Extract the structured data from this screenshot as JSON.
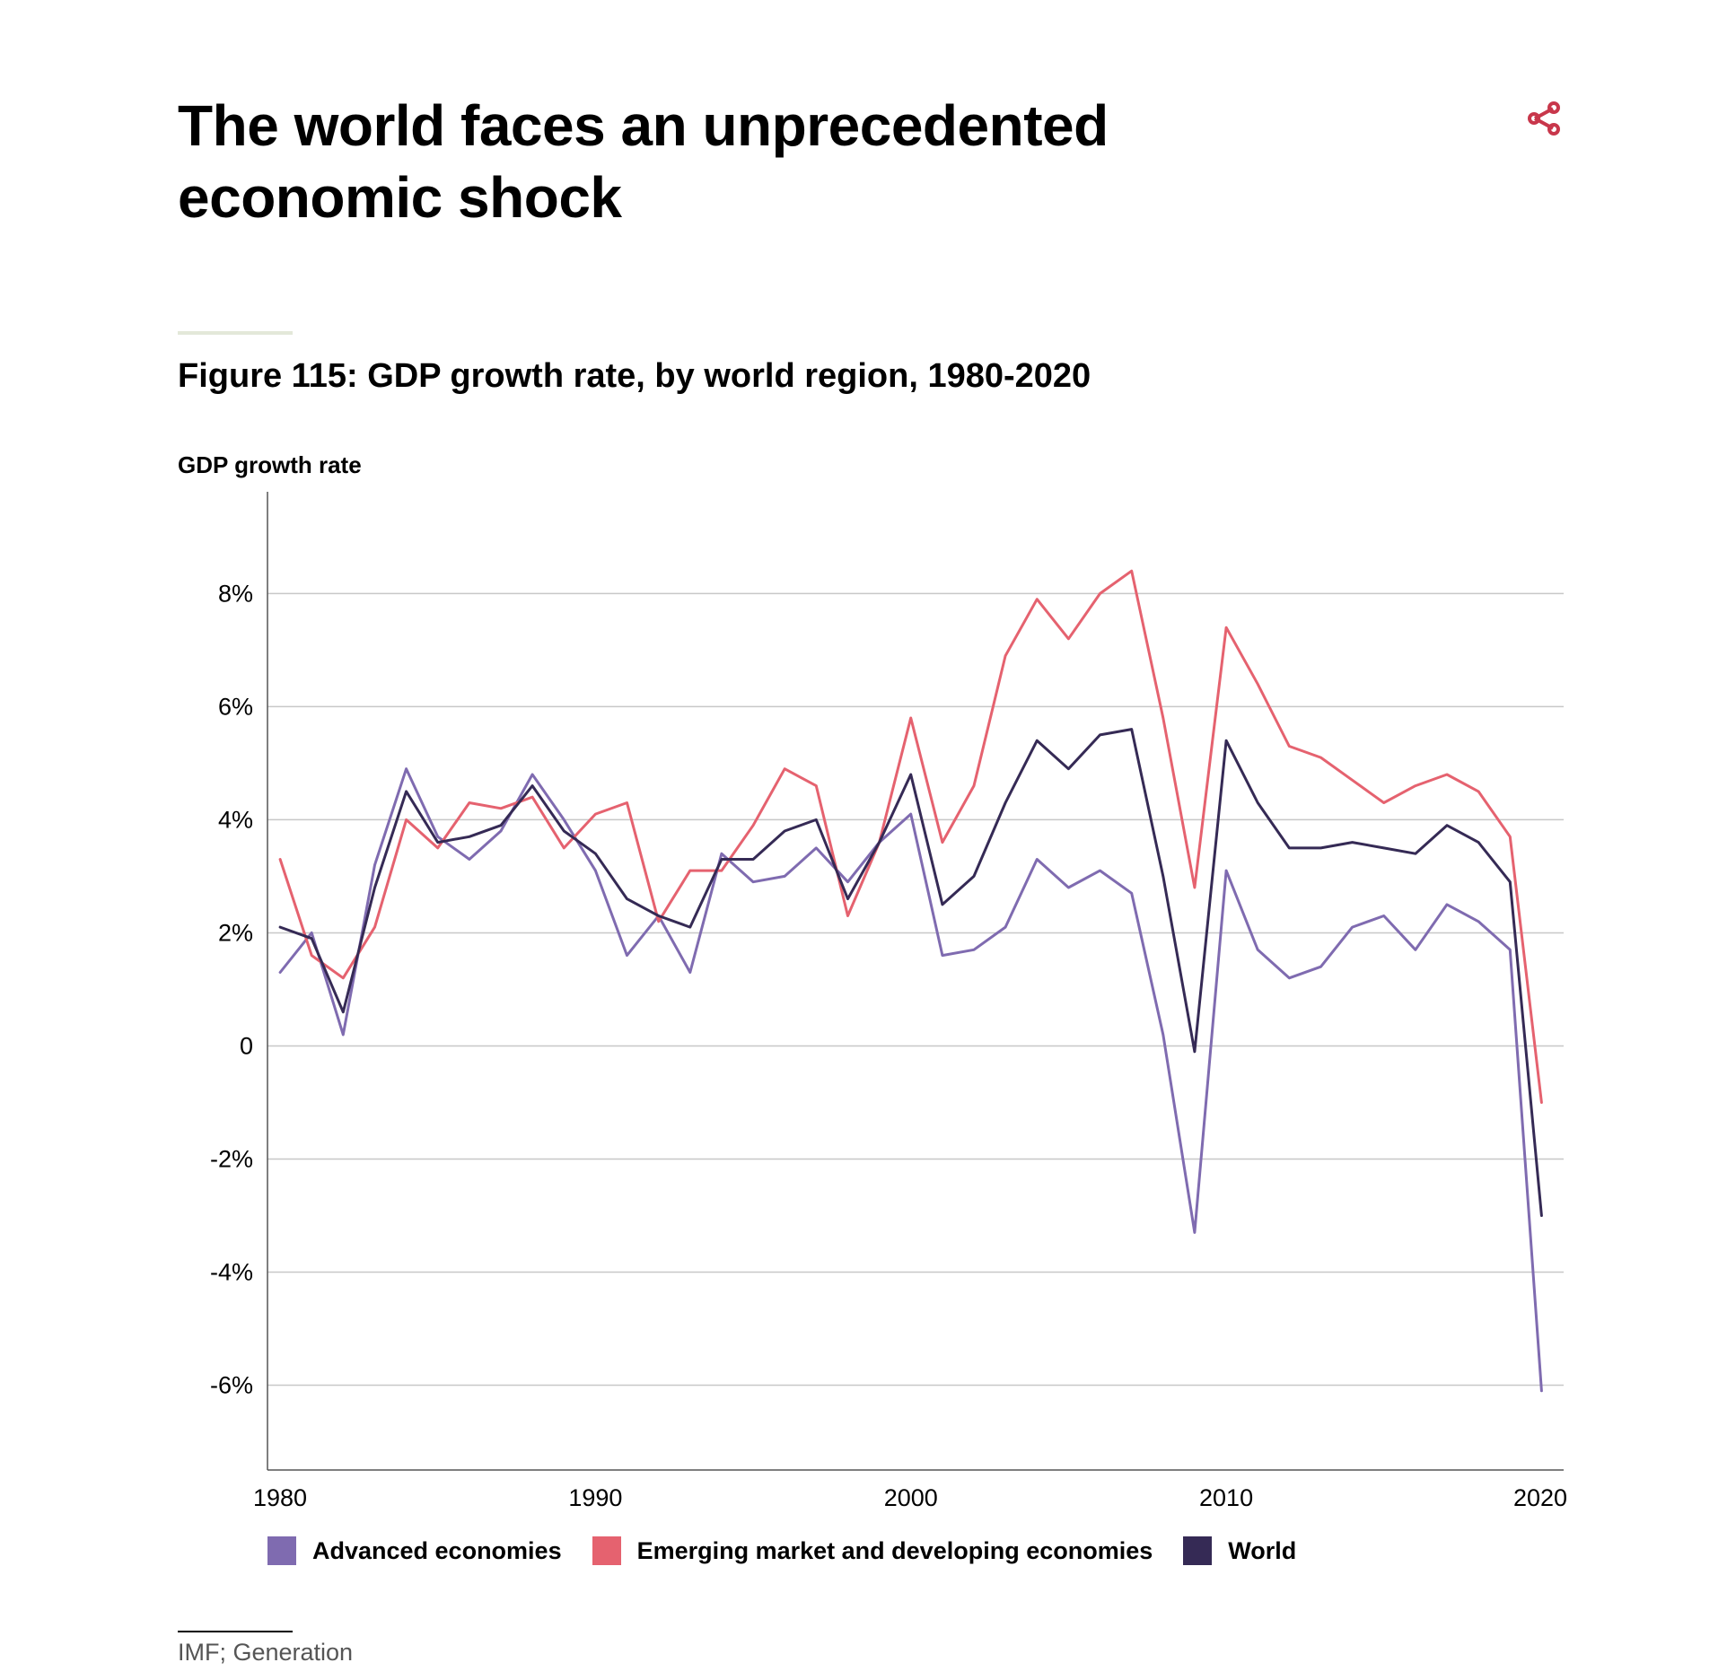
{
  "header": {
    "title": "The world faces an unprecedented economic shock",
    "share_icon": "share-icon",
    "share_color": "#c8374b"
  },
  "figure": {
    "title": "Figure 115: GDP growth rate, by world region, 1980-2020",
    "source": "IMF; Generation"
  },
  "chart_data": {
    "type": "line",
    "title": "Figure 115: GDP growth rate, by world region, 1980-2020",
    "xlabel": "",
    "ylabel": "GDP growth rate",
    "xlim": [
      1980,
      2020
    ],
    "ylim": [
      -7.5,
      9.8
    ],
    "x_ticks": [
      1980,
      1990,
      2000,
      2010,
      2020
    ],
    "y_ticks": [
      -6,
      -4,
      -2,
      0,
      2,
      4,
      6,
      8
    ],
    "y_tick_labels": [
      "-6%",
      "-4%",
      "-2%",
      "0",
      "2%",
      "4%",
      "6%",
      "8%"
    ],
    "grid": "horizontal",
    "legend_position": "bottom",
    "x": [
      1980,
      1981,
      1982,
      1983,
      1984,
      1985,
      1986,
      1987,
      1988,
      1989,
      1990,
      1991,
      1992,
      1993,
      1994,
      1995,
      1996,
      1997,
      1998,
      1999,
      2000,
      2001,
      2002,
      2003,
      2004,
      2005,
      2006,
      2007,
      2008,
      2009,
      2010,
      2011,
      2012,
      2013,
      2014,
      2015,
      2016,
      2017,
      2018,
      2019,
      2020
    ],
    "series": [
      {
        "name": "Advanced economies",
        "color": "#7f6bb0",
        "values": [
          1.3,
          2.0,
          0.2,
          3.2,
          4.9,
          3.7,
          3.3,
          3.8,
          4.8,
          4.0,
          3.1,
          1.6,
          2.3,
          1.3,
          3.4,
          2.9,
          3.0,
          3.5,
          2.9,
          3.6,
          4.1,
          1.6,
          1.7,
          2.1,
          3.3,
          2.8,
          3.1,
          2.7,
          0.2,
          -3.3,
          3.1,
          1.7,
          1.2,
          1.4,
          2.1,
          2.3,
          1.7,
          2.5,
          2.2,
          1.7,
          -6.1
        ]
      },
      {
        "name": "Emerging market and developing economies",
        "color": "#e5626f",
        "values": [
          3.3,
          1.6,
          1.2,
          2.1,
          4.0,
          3.5,
          4.3,
          4.2,
          4.4,
          3.5,
          4.1,
          4.3,
          2.2,
          3.1,
          3.1,
          3.9,
          4.9,
          4.6,
          2.3,
          3.6,
          5.8,
          3.6,
          4.6,
          6.9,
          7.9,
          7.2,
          8.0,
          8.4,
          5.8,
          2.8,
          7.4,
          6.4,
          5.3,
          5.1,
          4.7,
          4.3,
          4.6,
          4.8,
          4.5,
          3.7,
          -1.0
        ]
      },
      {
        "name": "World",
        "color": "#352a55",
        "values": [
          2.1,
          1.9,
          0.6,
          2.8,
          4.5,
          3.6,
          3.7,
          3.9,
          4.6,
          3.8,
          3.4,
          2.6,
          2.3,
          2.1,
          3.3,
          3.3,
          3.8,
          4.0,
          2.6,
          3.6,
          4.8,
          2.5,
          3.0,
          4.3,
          5.4,
          4.9,
          5.5,
          5.6,
          3.0,
          -0.1,
          5.4,
          4.3,
          3.5,
          3.5,
          3.6,
          3.5,
          3.4,
          3.9,
          3.6,
          2.9,
          -3.0
        ]
      }
    ]
  }
}
